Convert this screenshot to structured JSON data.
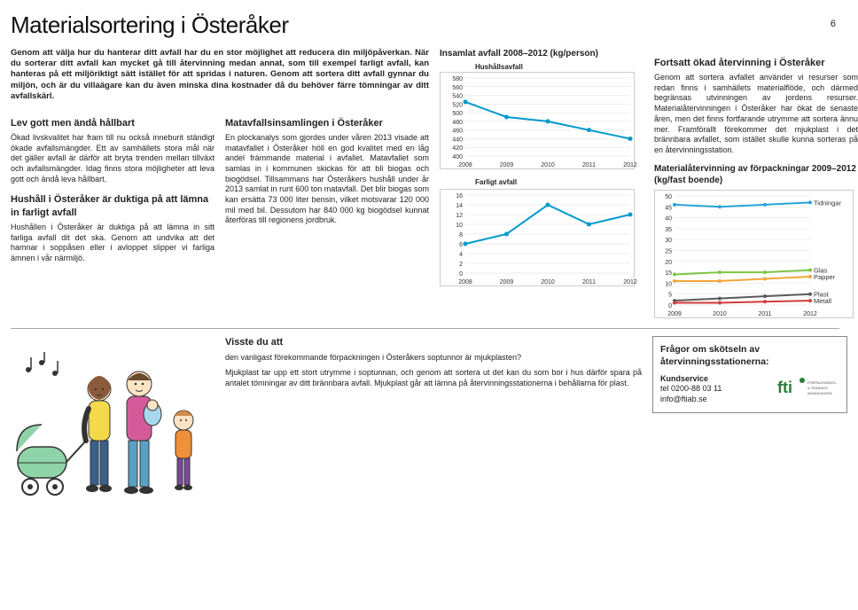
{
  "page_number": "6",
  "title": "Materialsortering i Österåker",
  "intro": "Genom att välja hur du hanterar ditt avfall har du en stor möjlighet att reducera din miljöpåverkan. När du sorterar ditt avfall kan mycket gå till återvinning medan annat, som till exempel farligt avfall, kan hanteras på ett miljöriktigt sätt istället för att spridas i naturen. Genom att sortera ditt avfall gynnar du miljön, och är du villaägare kan du även minska dina kostnader då du behöver färre tömningar av ditt avfallskärl.",
  "col1": {
    "h1": "Lev gott men ändå hållbart",
    "p1": "Ökad livskvalitet har fram till nu också inneburit ständigt ökade avfallsmängder. Ett av samhällets stora mål när det gäller avfall är därför att bryta trenden mellan tillväxt och avfallsmängder. Idag finns stora möjligheter att leva gott och ändå leva hållbart.",
    "h2": "Hushåll i Österåker är duktiga på att lämna in farligt avfall",
    "p2": "Hushållen i Österåker är duktiga på att lämna in sitt farliga avfall dit det ska. Genom att undvika att det hamnar i soppåsen eller i avloppet slipper vi farliga ämnen i vår närmiljö."
  },
  "col2": {
    "h1": "Matavfallsinsamlingen i Österåker",
    "p1": "En plockanalys som gjordes under våren 2013 visade att matavfallet i Österåker höll en god kvalitet med en låg andel främmande material i avfallet. Matavfallet som samlas in i kommunen skickas för att bli biogas och biogödsel. Tillsammans har Österåkers hushåll under år 2013 samlat in runt 600 ton matavfall. Det blir biogas som kan ersätta 73 000 liter bensin, vilket motsvarar 120 000 mil med bil. Dessutom har 840 000 kg biogödsel kunnat återföras till regionens jordbruk."
  },
  "chart1": {
    "title": "Insamlat avfall 2008–2012 (kg/person)",
    "sub1": "Hushållsavfall",
    "ymin": 400,
    "ymax": 580,
    "ystep": 20,
    "years": [
      "2008",
      "2009",
      "2010",
      "2011",
      "2012"
    ],
    "values": [
      525,
      490,
      480,
      460,
      440
    ],
    "color": "#0099cc",
    "sub2": "Farligt avfall",
    "ymin2": 0,
    "ymax2": 16,
    "ystep2": 2,
    "values2": [
      6,
      8,
      14,
      10,
      12
    ]
  },
  "col4": {
    "h1": "Fortsatt ökad återvinning i Österåker",
    "p1": "Genom att sortera avfallet använder vi resurser som redan finns i samhällets materialflöde, och därmed begränsas utvinningen av jordens resurser. Materialåtervinningen i Österåker har ökat de senaste åren, men det finns fortfarande utrymme att sortera ännu mer. Framförallt förekommer det mjukplast i det brännbara avfallet, som istället skulle kunna sorteras på en återvinningsstation."
  },
  "chart2": {
    "title": "Materialåtervinning av förpackningar 2009–2012 (kg/fast boende)",
    "ymin": 0,
    "ymax": 50,
    "ystep": 5,
    "years": [
      "2009",
      "2010",
      "2011",
      "2012"
    ],
    "series": {
      "Tidningar": {
        "color": "#2aa3d9",
        "values": [
          46,
          45,
          46,
          47
        ]
      },
      "Glas": {
        "color": "#7ec544",
        "values": [
          14,
          15,
          15,
          16
        ]
      },
      "Papper": {
        "color": "#f2a63b",
        "values": [
          11,
          11,
          12,
          13
        ]
      },
      "Plast": {
        "color": "#5a5a5a",
        "values": [
          2,
          3,
          4,
          5
        ]
      },
      "Metall": {
        "color": "#d23b3b",
        "values": [
          1,
          1,
          1.5,
          2
        ]
      }
    }
  },
  "visste": {
    "h": "Visste du att",
    "p1": "den vanligast förekommande förpackningen i Österåkers soptunnor är mjukplasten?",
    "p2": "Mjukplast tar upp ett stort utrymme i soptunnan, och genom att sortera ut det kan du som bor i hus därför spara på antalet tömningar av ditt brännbara avfall. Mjukplast går att lämna på återvinningsstationerna i behållarna för plast."
  },
  "contact": {
    "h": "Frågor om skötseln av återvinningsstationerna:",
    "kund": "Kundservice",
    "tel": "tel 0200-88 03 11",
    "email": "info@ftiab.se",
    "fti_caption": "FÖRPACKNINGS- & TIDNINGS INSAMLINGEN"
  }
}
